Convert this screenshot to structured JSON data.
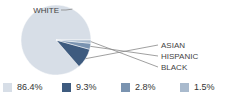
{
  "chart_data": {
    "type": "pie",
    "categories": [
      "WHITE",
      "ASIAN",
      "HISPANIC",
      "BLACK"
    ],
    "values": [
      86.4,
      9.3,
      2.8,
      1.5
    ],
    "value_labels": [
      "86.4%",
      "9.3%",
      "2.8%",
      "1.5%"
    ],
    "colors": [
      "#d7dee7",
      "#3e5b7f",
      "#7a93b0",
      "#a9bacd"
    ],
    "legend": "bottom"
  }
}
